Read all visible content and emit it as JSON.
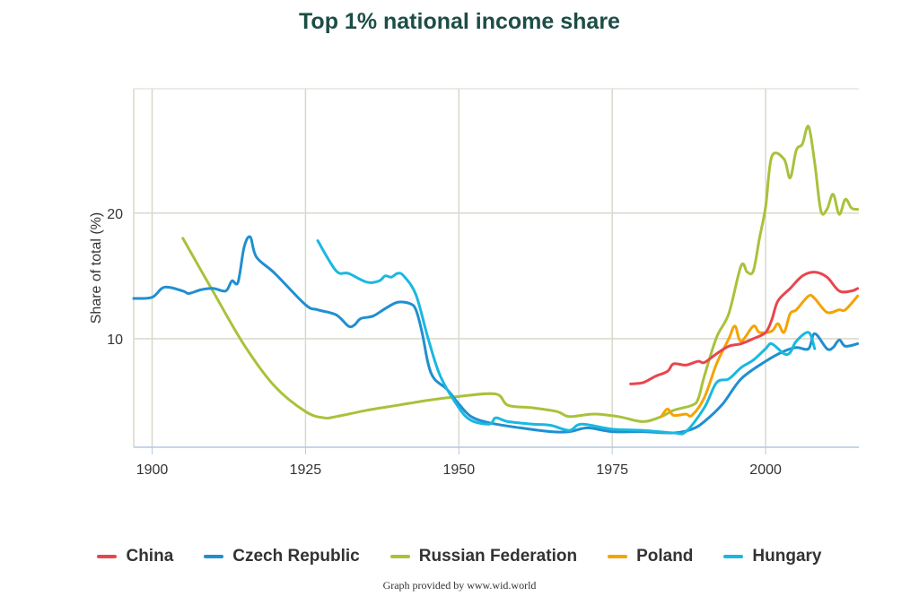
{
  "chart_data": {
    "type": "line",
    "title": "Top 1% national income share",
    "xlabel": "",
    "ylabel": "Share of total (%)",
    "xlim": [
      1897,
      2015.2
    ],
    "ylim": [
      1.36,
      29.9
    ],
    "xticks": [
      1900,
      1925,
      1950,
      1975,
      2000
    ],
    "yticks": [
      10,
      20
    ],
    "grid": true,
    "legend_position": "bottom",
    "series": [
      {
        "name": "China",
        "color": "#e8464f",
        "points": [
          [
            1978,
            6.4
          ],
          [
            1980,
            6.5
          ],
          [
            1982,
            7.0
          ],
          [
            1984,
            7.4
          ],
          [
            1985,
            8.0
          ],
          [
            1987,
            7.9
          ],
          [
            1989,
            8.2
          ],
          [
            1990,
            8.1
          ],
          [
            1992,
            8.8
          ],
          [
            1994,
            9.4
          ],
          [
            1996,
            9.6
          ],
          [
            1998,
            10.0
          ],
          [
            2000,
            10.5
          ],
          [
            2001,
            11.5
          ],
          [
            2002,
            13.0
          ],
          [
            2004,
            14.0
          ],
          [
            2006,
            15.0
          ],
          [
            2008,
            15.3
          ],
          [
            2010,
            14.9
          ],
          [
            2012,
            13.8
          ],
          [
            2014,
            13.8
          ],
          [
            2015,
            14.0
          ]
        ]
      },
      {
        "name": "Czech Republic",
        "color": "#1f8fd1",
        "points": [
          [
            1897,
            13.2
          ],
          [
            1900,
            13.3
          ],
          [
            1902,
            14.1
          ],
          [
            1905,
            13.8
          ],
          [
            1906,
            13.6
          ],
          [
            1908,
            13.9
          ],
          [
            1910,
            14.0
          ],
          [
            1912,
            13.8
          ],
          [
            1913,
            14.6
          ],
          [
            1914,
            14.5
          ],
          [
            1915,
            17.3
          ],
          [
            1916,
            18.1
          ],
          [
            1917,
            16.5
          ],
          [
            1920,
            15.2
          ],
          [
            1925,
            12.7
          ],
          [
            1927,
            12.3
          ],
          [
            1930,
            11.9
          ],
          [
            1932,
            11.0
          ],
          [
            1933,
            11.1
          ],
          [
            1934,
            11.6
          ],
          [
            1936,
            11.8
          ],
          [
            1938,
            12.4
          ],
          [
            1940,
            12.9
          ],
          [
            1942,
            12.8
          ],
          [
            1943,
            12.3
          ],
          [
            1944,
            10.5
          ],
          [
            1945,
            8.0
          ],
          [
            1946,
            6.8
          ],
          [
            1948,
            6.0
          ],
          [
            1950,
            4.8
          ],
          [
            1952,
            3.8
          ],
          [
            1955,
            3.3
          ],
          [
            1960,
            2.9
          ],
          [
            1965,
            2.6
          ],
          [
            1968,
            2.6
          ],
          [
            1971,
            2.9
          ],
          [
            1975,
            2.6
          ],
          [
            1980,
            2.6
          ],
          [
            1985,
            2.5
          ],
          [
            1988,
            2.8
          ],
          [
            1990,
            3.4
          ],
          [
            1993,
            4.8
          ],
          [
            1996,
            6.8
          ],
          [
            2000,
            8.2
          ],
          [
            2003,
            9.0
          ],
          [
            2005,
            9.3
          ],
          [
            2007,
            9.2
          ],
          [
            2008,
            10.4
          ],
          [
            2010,
            9.2
          ],
          [
            2011,
            9.3
          ],
          [
            2012,
            9.9
          ],
          [
            2013,
            9.4
          ],
          [
            2015,
            9.6
          ]
        ]
      },
      {
        "name": "Russian Federation",
        "color": "#a8c23a",
        "points": [
          [
            1905,
            18.0
          ],
          [
            1910,
            13.7
          ],
          [
            1915,
            9.5
          ],
          [
            1920,
            6.2
          ],
          [
            1925,
            4.2
          ],
          [
            1928,
            3.7
          ],
          [
            1930,
            3.8
          ],
          [
            1935,
            4.3
          ],
          [
            1940,
            4.7
          ],
          [
            1945,
            5.1
          ],
          [
            1950,
            5.4
          ],
          [
            1956,
            5.6
          ],
          [
            1958,
            4.7
          ],
          [
            1962,
            4.5
          ],
          [
            1966,
            4.2
          ],
          [
            1968,
            3.8
          ],
          [
            1972,
            4.0
          ],
          [
            1976,
            3.8
          ],
          [
            1980,
            3.4
          ],
          [
            1983,
            3.8
          ],
          [
            1985,
            4.3
          ],
          [
            1988,
            4.7
          ],
          [
            1989,
            5.2
          ],
          [
            1990,
            7.0
          ],
          [
            1992,
            10.1
          ],
          [
            1994,
            12.0
          ],
          [
            1996,
            15.8
          ],
          [
            1997,
            15.3
          ],
          [
            1998,
            15.4
          ],
          [
            1999,
            18.0
          ],
          [
            2000,
            20.5
          ],
          [
            2001,
            24.5
          ],
          [
            2003,
            24.3
          ],
          [
            2004,
            22.8
          ],
          [
            2005,
            25.0
          ],
          [
            2006,
            25.5
          ],
          [
            2007,
            26.9
          ],
          [
            2008,
            24.0
          ],
          [
            2009,
            20.2
          ],
          [
            2010,
            20.3
          ],
          [
            2011,
            21.5
          ],
          [
            2012,
            19.9
          ],
          [
            2013,
            21.1
          ],
          [
            2014,
            20.4
          ],
          [
            2015,
            20.3
          ]
        ]
      },
      {
        "name": "Poland",
        "color": "#f5a300",
        "points": [
          [
            1983,
            3.8
          ],
          [
            1984,
            4.4
          ],
          [
            1985,
            3.9
          ],
          [
            1987,
            4.0
          ],
          [
            1988,
            3.9
          ],
          [
            1990,
            5.3
          ],
          [
            1992,
            8.0
          ],
          [
            1994,
            10.0
          ],
          [
            1995,
            11.0
          ],
          [
            1996,
            9.8
          ],
          [
            1998,
            11.0
          ],
          [
            1999,
            10.5
          ],
          [
            2001,
            10.6
          ],
          [
            2002,
            11.2
          ],
          [
            2003,
            10.5
          ],
          [
            2004,
            12.0
          ],
          [
            2005,
            12.3
          ],
          [
            2007,
            13.4
          ],
          [
            2008,
            13.2
          ],
          [
            2010,
            12.1
          ],
          [
            2012,
            12.3
          ],
          [
            2013,
            12.3
          ],
          [
            2015,
            13.4
          ]
        ]
      },
      {
        "name": "Hungary",
        "color": "#1ab8e0",
        "points": [
          [
            1927,
            17.8
          ],
          [
            1930,
            15.4
          ],
          [
            1932,
            15.2
          ],
          [
            1935,
            14.5
          ],
          [
            1937,
            14.6
          ],
          [
            1938,
            15.0
          ],
          [
            1939,
            14.9
          ],
          [
            1940,
            15.2
          ],
          [
            1941,
            15.0
          ],
          [
            1943,
            13.5
          ],
          [
            1945,
            10.0
          ],
          [
            1947,
            7.0
          ],
          [
            1950,
            4.5
          ],
          [
            1952,
            3.5
          ],
          [
            1955,
            3.2
          ],
          [
            1956,
            3.7
          ],
          [
            1958,
            3.4
          ],
          [
            1962,
            3.2
          ],
          [
            1965,
            3.1
          ],
          [
            1968,
            2.7
          ],
          [
            1970,
            3.2
          ],
          [
            1975,
            2.8
          ],
          [
            1980,
            2.7
          ],
          [
            1985,
            2.5
          ],
          [
            1987,
            2.6
          ],
          [
            1990,
            4.5
          ],
          [
            1992,
            6.5
          ],
          [
            1994,
            6.8
          ],
          [
            1996,
            7.7
          ],
          [
            1998,
            8.3
          ],
          [
            2000,
            9.2
          ],
          [
            2001,
            9.6
          ],
          [
            2003,
            8.8
          ],
          [
            2004,
            8.9
          ],
          [
            2005,
            9.8
          ],
          [
            2007,
            10.5
          ],
          [
            2008,
            9.2
          ]
        ]
      }
    ]
  },
  "credit": "Graph provided by www.wid.world"
}
